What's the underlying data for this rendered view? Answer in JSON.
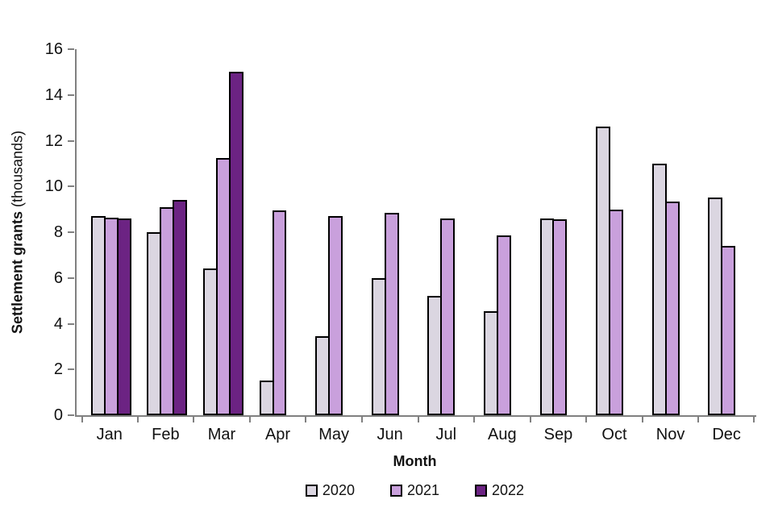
{
  "chart_data": {
    "type": "bar",
    "title": "",
    "categories": [
      "Jan",
      "Feb",
      "Mar",
      "Apr",
      "May",
      "Jun",
      "Jul",
      "Aug",
      "Sep",
      "Oct",
      "Nov",
      "Dec"
    ],
    "series": [
      {
        "name": "2020",
        "color": "#DBD6E1",
        "values": [
          8.7,
          8.0,
          6.4,
          1.5,
          3.45,
          6.0,
          5.2,
          4.55,
          8.6,
          12.6,
          11.0,
          9.5
        ]
      },
      {
        "name": "2021",
        "color": "#C9A0DC",
        "values": [
          8.65,
          9.1,
          11.25,
          8.95,
          8.7,
          8.85,
          8.6,
          7.85,
          8.55,
          9.0,
          9.35,
          7.4
        ]
      },
      {
        "name": "2022",
        "color": "#6C2383",
        "values": [
          8.6,
          9.4,
          15.0,
          null,
          null,
          null,
          null,
          null,
          null,
          null,
          null,
          null
        ]
      }
    ],
    "xlabel": "Month",
    "ylabel_bold": "Settlement grants",
    "ylabel_regular": "(thousands)",
    "ylim": [
      0,
      16
    ],
    "ytick_step": 2,
    "yticks": [
      0,
      2,
      4,
      6,
      8,
      10,
      12,
      14,
      16
    ],
    "grid": false,
    "legend_position": "bottom",
    "axis_color": "#808080",
    "bar_border_color": "#000000",
    "text_color": "#111111"
  }
}
